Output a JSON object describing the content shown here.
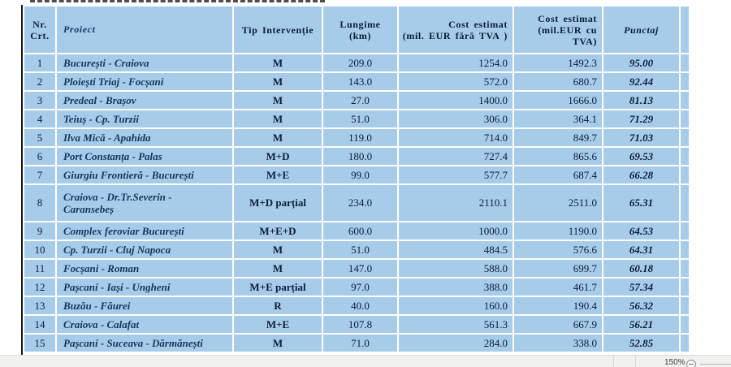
{
  "table": {
    "columns": [
      {
        "key": "nr",
        "lines": [
          "Nr.",
          "Crt."
        ]
      },
      {
        "key": "proiect",
        "lines": [
          "Proiect"
        ]
      },
      {
        "key": "tip",
        "lines": [
          "Tip Intervenție"
        ]
      },
      {
        "key": "lungime",
        "lines": [
          "Lungime",
          "(km)"
        ]
      },
      {
        "key": "cost1",
        "lines": [
          "Cost estimat",
          "(mil. EUR fără TVA )"
        ]
      },
      {
        "key": "cost2",
        "lines": [
          "Cost estimat",
          "(mil.EUR cu",
          "TVA)"
        ]
      },
      {
        "key": "punctaj",
        "lines": [
          "Punctaj"
        ]
      },
      {
        "key": "extra",
        "lines": []
      }
    ],
    "rows": [
      [
        "1",
        "București - Craiova",
        "M",
        "209.0",
        "1254.0",
        "1492.3",
        "95.00"
      ],
      [
        "2",
        "Ploiești Triaj - Focșani",
        "M",
        "143.0",
        "572.0",
        "680.7",
        "92.44"
      ],
      [
        "3",
        "Predeal - Brașov",
        "M",
        "27.0",
        "1400.0",
        "1666.0",
        "81.13"
      ],
      [
        "4",
        "Teiuș - Cp. Turzii",
        "M",
        "51.0",
        "306.0",
        "364.1",
        "71.29"
      ],
      [
        "5",
        "Ilva Mică - Apahida",
        "M",
        "119.0",
        "714.0",
        "849.7",
        "71.03"
      ],
      [
        "6",
        "Port Constanța - Palas",
        "M+D",
        "180.0",
        "727.4",
        "865.6",
        "69.53"
      ],
      [
        "7",
        "Giurgiu Frontieră - București",
        "M+E",
        "99.0",
        "577.7",
        "687.4",
        "66.28"
      ],
      [
        "8",
        "Craiova - Dr.Tr.Severin - Caransebeș",
        "M+D parțial",
        "234.0",
        "2110.1",
        "2511.0",
        "65.31"
      ],
      [
        "9",
        "Complex feroviar București",
        "M+E+D",
        "600.0",
        "1000.0",
        "1190.0",
        "64.53"
      ],
      [
        "10",
        "Cp. Turzii - Cluj Napoca",
        "M",
        "51.0",
        "484.5",
        "576.6",
        "64.31"
      ],
      [
        "11",
        "Focșani - Roman",
        "M",
        "147.0",
        "588.0",
        "699.7",
        "60.18"
      ],
      [
        "12",
        "Pașcani - Iași - Ungheni",
        "M+E parțial",
        "97.0",
        "388.0",
        "461.7",
        "57.34"
      ],
      [
        "13",
        "Buzău - Făurei",
        "R",
        "40.0",
        "160.0",
        "190.4",
        "56.32"
      ],
      [
        "14",
        "Craiova - Calafat",
        "M+E",
        "107.8",
        "561.3",
        "667.9",
        "56.21"
      ],
      [
        "15",
        "Pașcani - Suceava - Dărmănești",
        "M",
        "71.0",
        "284.0",
        "338.0",
        "52.85"
      ]
    ],
    "tall_row_index": 7
  },
  "status_bar": {
    "zoom_level": "150%"
  },
  "colors": {
    "cell_blue": "#a6cce9",
    "grid_white": "#ffffff",
    "text_navy": "#0e1c38",
    "statusbar_gray": "#f2f1ef"
  }
}
